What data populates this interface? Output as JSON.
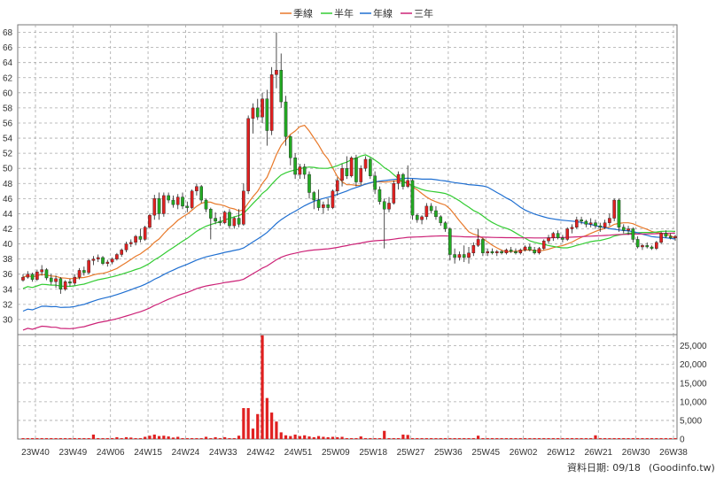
{
  "chart_data": {
    "type": "candlestick",
    "price_axis": {
      "min": 28,
      "max": 69,
      "ticks": [
        30,
        32,
        34,
        36,
        38,
        40,
        42,
        44,
        46,
        48,
        50,
        52,
        54,
        56,
        58,
        60,
        62,
        64,
        66,
        68
      ],
      "side": "left"
    },
    "volume_axis": {
      "min": 0,
      "max": 28000,
      "ticks": [
        0,
        5000,
        10000,
        15000,
        20000,
        25000
      ],
      "tick_labels": [
        "0",
        "5,000",
        "10,000",
        "15,000",
        "20,000",
        "25,000"
      ],
      "side": "right"
    },
    "x_axis_labels": [
      "23W40",
      "23W49",
      "24W06",
      "24W15",
      "24W24",
      "24W33",
      "24W42",
      "24W51",
      "25W09",
      "25W18",
      "25W27",
      "25W36",
      "25W45",
      "26W02",
      "26W12",
      "26W21",
      "26W30",
      "26W38"
    ],
    "grid": true,
    "legend": {
      "position": "top-center",
      "items": [
        {
          "label": "季線",
          "color": "#e8792a"
        },
        {
          "label": "半年",
          "color": "#33cc33"
        },
        {
          "label": "年線",
          "color": "#1f6fd1"
        },
        {
          "label": "三年",
          "color": "#cc2277"
        }
      ]
    },
    "colors": {
      "up": "#e02020",
      "down": "#22aa22",
      "volume": "#e02020",
      "grid": "#a8a8a8"
    },
    "candles": [
      [
        35.2,
        36.0,
        35.0,
        35.6
      ],
      [
        35.6,
        36.4,
        35.4,
        36.0
      ],
      [
        36.0,
        36.2,
        35.0,
        35.3
      ],
      [
        35.3,
        36.6,
        35.1,
        36.3
      ],
      [
        36.3,
        37.2,
        35.8,
        36.6
      ],
      [
        36.6,
        36.8,
        35.2,
        35.5
      ],
      [
        35.5,
        36.0,
        34.6,
        35.0
      ],
      [
        35.0,
        35.8,
        34.2,
        35.4
      ],
      [
        35.4,
        35.6,
        33.4,
        34.0
      ],
      [
        34.0,
        35.2,
        33.8,
        35.0
      ],
      [
        35.0,
        35.4,
        34.4,
        34.8
      ],
      [
        34.8,
        36.0,
        34.5,
        35.6
      ],
      [
        35.6,
        36.8,
        35.3,
        36.5
      ],
      [
        36.5,
        37.0,
        35.8,
        36.2
      ],
      [
        36.2,
        38.0,
        36.0,
        37.8
      ],
      [
        37.8,
        38.4,
        37.2,
        38.0
      ],
      [
        38.0,
        38.6,
        37.6,
        38.2
      ],
      [
        38.2,
        38.4,
        37.2,
        37.4
      ],
      [
        37.4,
        37.9,
        37.0,
        37.6
      ],
      [
        37.6,
        38.2,
        37.3,
        38.0
      ],
      [
        38.0,
        38.8,
        37.8,
        38.6
      ],
      [
        38.6,
        39.4,
        38.3,
        39.2
      ],
      [
        39.2,
        40.3,
        38.9,
        40.0
      ],
      [
        40.0,
        40.6,
        39.6,
        40.2
      ],
      [
        40.2,
        41.2,
        39.8,
        41.0
      ],
      [
        41.0,
        42.0,
        40.2,
        40.6
      ],
      [
        40.6,
        42.4,
        40.4,
        42.2
      ],
      [
        42.2,
        44.0,
        42.0,
        43.8
      ],
      [
        43.8,
        46.5,
        43.2,
        46.0
      ],
      [
        46.0,
        46.8,
        43.2,
        44.0
      ],
      [
        44.0,
        46.8,
        43.6,
        46.4
      ],
      [
        46.4,
        46.8,
        45.4,
        45.8
      ],
      [
        45.8,
        46.4,
        44.8,
        45.2
      ],
      [
        45.2,
        46.6,
        44.6,
        46.2
      ],
      [
        46.2,
        46.8,
        44.6,
        45.0
      ],
      [
        45.0,
        45.6,
        44.2,
        44.8
      ],
      [
        44.8,
        47.2,
        44.6,
        47.0
      ],
      [
        47.0,
        48.0,
        46.4,
        47.6
      ],
      [
        47.6,
        47.8,
        45.4,
        45.8
      ],
      [
        45.8,
        46.0,
        44.2,
        44.6
      ],
      [
        44.6,
        44.8,
        40.6,
        43.4
      ],
      [
        43.4,
        44.2,
        42.6,
        43.0
      ],
      [
        43.0,
        43.6,
        42.4,
        42.8
      ],
      [
        42.8,
        44.4,
        42.6,
        44.2
      ],
      [
        44.2,
        44.6,
        42.0,
        42.4
      ],
      [
        42.4,
        43.6,
        42.0,
        43.4
      ],
      [
        43.4,
        44.6,
        42.2,
        42.6
      ],
      [
        42.6,
        48.0,
        42.4,
        47.0
      ],
      [
        47.0,
        57.0,
        46.6,
        56.6
      ],
      [
        56.6,
        58.6,
        54.6,
        58.0
      ],
      [
        58.0,
        59.2,
        56.4,
        56.8
      ],
      [
        56.8,
        60.0,
        56.0,
        59.2
      ],
      [
        59.2,
        60.4,
        53.0,
        55.0
      ],
      [
        55.0,
        63.4,
        54.4,
        62.4
      ],
      [
        62.4,
        68.0,
        60.6,
        63.0
      ],
      [
        63.0,
        65.2,
        58.0,
        58.8
      ],
      [
        58.8,
        59.6,
        53.0,
        54.2
      ],
      [
        54.2,
        54.4,
        50.4,
        51.4
      ],
      [
        51.4,
        52.0,
        48.6,
        49.2
      ],
      [
        49.2,
        50.6,
        48.6,
        50.2
      ],
      [
        50.2,
        50.6,
        48.6,
        49.2
      ],
      [
        49.2,
        49.6,
        46.0,
        46.8
      ],
      [
        46.8,
        47.0,
        44.6,
        45.8
      ],
      [
        45.8,
        47.2,
        44.4,
        44.8
      ],
      [
        44.8,
        45.6,
        44.0,
        45.2
      ],
      [
        45.2,
        46.0,
        44.4,
        44.8
      ],
      [
        44.8,
        47.2,
        44.6,
        47.0
      ],
      [
        47.0,
        48.8,
        46.4,
        48.4
      ],
      [
        48.4,
        50.6,
        47.6,
        50.0
      ],
      [
        50.0,
        51.6,
        48.6,
        49.0
      ],
      [
        49.0,
        51.6,
        48.8,
        51.4
      ],
      [
        51.4,
        51.8,
        47.6,
        48.2
      ],
      [
        48.2,
        50.4,
        47.8,
        50.0
      ],
      [
        50.0,
        51.6,
        49.6,
        51.2
      ],
      [
        51.2,
        51.4,
        48.6,
        49.0
      ],
      [
        49.0,
        49.6,
        46.6,
        47.2
      ],
      [
        47.2,
        47.6,
        45.2,
        45.6
      ],
      [
        45.6,
        46.0,
        39.4,
        44.6
      ],
      [
        44.6,
        46.2,
        44.2,
        45.4
      ],
      [
        45.4,
        48.4,
        45.2,
        48.0
      ],
      [
        48.0,
        49.6,
        47.2,
        49.2
      ],
      [
        49.2,
        49.4,
        47.2,
        47.6
      ],
      [
        47.6,
        50.4,
        47.4,
        48.4
      ],
      [
        48.4,
        48.6,
        43.2,
        43.8
      ],
      [
        43.8,
        44.0,
        42.8,
        43.2
      ],
      [
        43.2,
        43.8,
        42.6,
        43.6
      ],
      [
        43.6,
        45.4,
        43.2,
        45.0
      ],
      [
        45.0,
        45.4,
        44.0,
        44.4
      ],
      [
        44.4,
        45.0,
        43.2,
        43.6
      ],
      [
        43.6,
        43.8,
        42.4,
        42.8
      ],
      [
        42.8,
        43.0,
        41.6,
        42.0
      ],
      [
        42.0,
        42.2,
        37.8,
        38.6
      ],
      [
        38.6,
        39.4,
        37.4,
        38.2
      ],
      [
        38.2,
        39.0,
        37.8,
        38.6
      ],
      [
        38.6,
        39.8,
        37.6,
        38.2
      ],
      [
        38.2,
        39.6,
        37.4,
        38.8
      ],
      [
        38.8,
        40.2,
        38.4,
        39.8
      ],
      [
        39.8,
        42.0,
        39.6,
        40.6
      ],
      [
        40.6,
        40.8,
        38.4,
        38.8
      ],
      [
        38.8,
        39.4,
        38.4,
        39.0
      ],
      [
        39.0,
        39.4,
        38.6,
        38.8
      ],
      [
        38.8,
        39.2,
        38.4,
        39.0
      ],
      [
        39.0,
        39.2,
        38.6,
        38.8
      ],
      [
        38.8,
        39.4,
        38.6,
        39.2
      ],
      [
        39.2,
        39.6,
        38.8,
        39.0
      ],
      [
        39.0,
        39.4,
        38.6,
        38.8
      ],
      [
        38.8,
        39.4,
        38.6,
        39.2
      ],
      [
        39.2,
        39.8,
        39.0,
        39.6
      ],
      [
        39.6,
        40.0,
        39.0,
        39.2
      ],
      [
        39.2,
        39.6,
        38.6,
        38.8
      ],
      [
        38.8,
        39.6,
        38.6,
        39.4
      ],
      [
        39.4,
        40.6,
        39.2,
        40.4
      ],
      [
        40.4,
        41.2,
        40.0,
        40.8
      ],
      [
        40.8,
        41.6,
        40.4,
        41.4
      ],
      [
        41.4,
        41.8,
        40.6,
        40.8
      ],
      [
        40.8,
        41.2,
        40.2,
        40.6
      ],
      [
        40.6,
        42.2,
        40.4,
        42.0
      ],
      [
        42.0,
        42.6,
        41.4,
        42.2
      ],
      [
        42.2,
        43.6,
        42.0,
        43.2
      ],
      [
        43.2,
        43.6,
        42.6,
        43.0
      ],
      [
        43.0,
        43.2,
        42.2,
        42.6
      ],
      [
        42.6,
        43.4,
        42.2,
        42.8
      ],
      [
        42.8,
        43.2,
        42.0,
        42.4
      ],
      [
        42.4,
        42.8,
        41.6,
        42.2
      ],
      [
        42.2,
        43.2,
        42.0,
        42.8
      ],
      [
        42.8,
        44.0,
        42.4,
        43.4
      ],
      [
        43.4,
        46.0,
        43.0,
        45.8
      ],
      [
        45.8,
        46.0,
        41.6,
        42.2
      ],
      [
        42.2,
        42.6,
        41.4,
        41.8
      ],
      [
        41.8,
        42.4,
        41.2,
        42.0
      ],
      [
        42.0,
        42.2,
        40.2,
        40.6
      ],
      [
        40.6,
        41.0,
        39.4,
        39.6
      ],
      [
        39.6,
        40.0,
        39.2,
        39.8
      ],
      [
        39.8,
        40.2,
        39.4,
        39.6
      ],
      [
        39.6,
        39.8,
        39.2,
        39.4
      ],
      [
        39.4,
        40.4,
        39.2,
        40.2
      ],
      [
        40.2,
        41.6,
        40.0,
        41.4
      ],
      [
        41.4,
        41.8,
        40.8,
        41.0
      ],
      [
        41.0,
        41.4,
        40.6,
        40.8
      ],
      [
        40.8,
        41.2,
        40.4,
        41.0
      ]
    ],
    "volume_spikes": [
      [
        15,
        1200
      ],
      [
        20,
        500
      ],
      [
        22,
        500
      ],
      [
        23,
        400
      ],
      [
        26,
        600
      ],
      [
        27,
        900
      ],
      [
        28,
        1200
      ],
      [
        29,
        800
      ],
      [
        30,
        900
      ],
      [
        31,
        700
      ],
      [
        32,
        400
      ],
      [
        33,
        600
      ],
      [
        39,
        600
      ],
      [
        41,
        500
      ],
      [
        43,
        500
      ],
      [
        46,
        900
      ],
      [
        47,
        8300
      ],
      [
        48,
        8300
      ],
      [
        49,
        2800
      ],
      [
        50,
        6700
      ],
      [
        51,
        27800
      ],
      [
        52,
        11000
      ],
      [
        53,
        7100
      ],
      [
        54,
        4700
      ],
      [
        55,
        1800
      ],
      [
        56,
        1000
      ],
      [
        57,
        800
      ],
      [
        58,
        1200
      ],
      [
        59,
        800
      ],
      [
        60,
        1000
      ],
      [
        61,
        700
      ],
      [
        62,
        500
      ],
      [
        63,
        800
      ],
      [
        64,
        600
      ],
      [
        65,
        500
      ],
      [
        66,
        600
      ],
      [
        67,
        500
      ],
      [
        68,
        600
      ],
      [
        72,
        700
      ],
      [
        77,
        2200
      ],
      [
        81,
        1200
      ],
      [
        82,
        1100
      ],
      [
        97,
        900
      ],
      [
        122,
        1000
      ]
    ]
  }
}
